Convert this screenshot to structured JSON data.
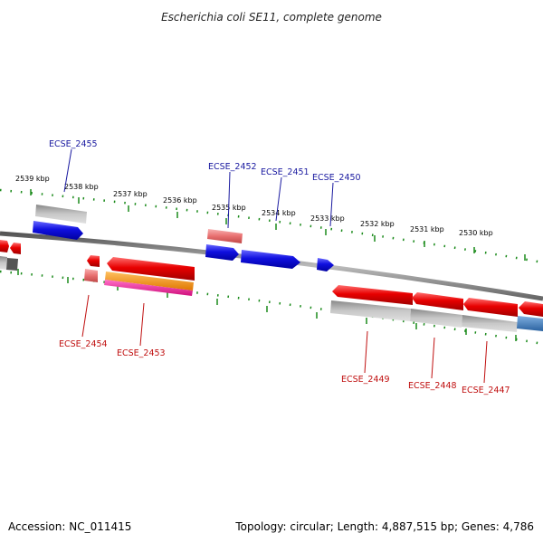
{
  "title": "Escherichia coli SE11, complete genome",
  "footer": {
    "accession": "Accession: NC_011415",
    "summary": "Topology: circular; Length: 4,887,515 bp; Genes: 4,786"
  },
  "colors": {
    "forward_gene": "#1010e0",
    "reverse_gene": "#e80000",
    "pseudo_gene": "#e87070",
    "grey_feature": "#a8a8a8",
    "orange_feature": "#f08c00",
    "pink_feature": "#f0209c",
    "steel_feature": "#4a82b8",
    "tick": "#1a8a1a",
    "label_forward": "#1a1aa0",
    "label_reverse": "#c01010"
  },
  "ticks": [
    {
      "label": "2539 kbp"
    },
    {
      "label": "2538 kbp"
    },
    {
      "label": "2537 kbp"
    },
    {
      "label": "2536 kbp"
    },
    {
      "label": "2535 kbp"
    },
    {
      "label": "2534 kbp"
    },
    {
      "label": "2533 kbp"
    },
    {
      "label": "2532 kbp"
    },
    {
      "label": "2531 kbp"
    },
    {
      "label": "2530 kbp"
    }
  ],
  "gene_labels": [
    {
      "name": "ECSE_2455",
      "strand": "forward"
    },
    {
      "name": "ECSE_2452",
      "strand": "forward"
    },
    {
      "name": "ECSE_2451",
      "strand": "forward"
    },
    {
      "name": "ECSE_2450",
      "strand": "forward"
    },
    {
      "name": "ECSE_2454",
      "strand": "reverse"
    },
    {
      "name": "ECSE_2453",
      "strand": "reverse"
    },
    {
      "name": "ECSE_2449",
      "strand": "reverse"
    },
    {
      "name": "ECSE_2448",
      "strand": "reverse"
    },
    {
      "name": "ECSE_2447",
      "strand": "reverse"
    }
  ]
}
